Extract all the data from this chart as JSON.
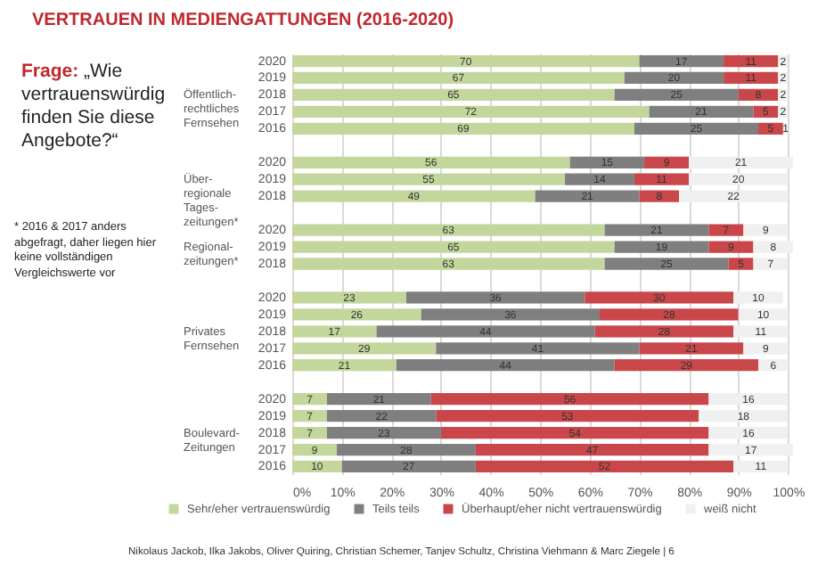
{
  "chart_data": {
    "type": "bar",
    "orientation": "horizontal",
    "stacked": true,
    "title": "VERTRAUEN IN MEDIENGATTUNGEN (2016-2020)",
    "categories": [
      "2020",
      "2019",
      "2018",
      "2017",
      "2016",
      null,
      "2020",
      "2019",
      "2018",
      null,
      "2020",
      "2019",
      "2018",
      null,
      "2020",
      "2019",
      "2018",
      "2017",
      "2016",
      null,
      "2020",
      "2019",
      "2018",
      "2017",
      "2016"
    ],
    "series": [
      {
        "name": "Sehr/eher vertrauenswürdig",
        "color": "#c3d69b",
        "values": [
          70,
          67,
          65,
          72,
          69,
          null,
          56,
          55,
          49,
          null,
          63,
          65,
          63,
          null,
          23,
          26,
          17,
          29,
          21,
          null,
          7,
          7,
          7,
          9,
          10
        ]
      },
      {
        "name": "Teils teils",
        "color": "#7f7f7f",
        "values": [
          17,
          20,
          25,
          21,
          25,
          null,
          15,
          14,
          21,
          null,
          21,
          19,
          25,
          null,
          36,
          36,
          44,
          41,
          44,
          null,
          21,
          22,
          23,
          28,
          27
        ]
      },
      {
        "name": "Überhaupt/eher nicht vertrauenswürdig",
        "color": "#c9474a",
        "values": [
          11,
          11,
          8,
          5,
          5,
          null,
          9,
          11,
          8,
          null,
          7,
          9,
          5,
          null,
          30,
          28,
          28,
          21,
          29,
          null,
          56,
          53,
          54,
          47,
          52
        ]
      },
      {
        "name": "weiß nicht",
        "color": "#f0f0f0",
        "values": [
          2,
          2,
          2,
          2,
          1,
          null,
          21,
          20,
          22,
          null,
          9,
          8,
          7,
          null,
          10,
          10,
          11,
          9,
          6,
          null,
          16,
          18,
          16,
          17,
          11
        ]
      }
    ],
    "xlim": [
      0,
      101
    ],
    "xticks": [
      {
        "value": 0,
        "label": "0%"
      },
      {
        "value": 10,
        "label": "10%"
      },
      {
        "value": 20,
        "label": "20%"
      },
      {
        "value": 30,
        "label": "30%"
      },
      {
        "value": 40,
        "label": "40%"
      },
      {
        "value": 50,
        "label": "50%"
      },
      {
        "value": 60,
        "label": "60%"
      },
      {
        "value": 70,
        "label": "70%"
      },
      {
        "value": 80,
        "label": "80%"
      },
      {
        "value": 90,
        "label": "90%"
      },
      {
        "value": 100,
        "label": "100%"
      }
    ],
    "grid": "x",
    "legend": "bottom",
    "data_labels": true,
    "annotations": [
      "Öffentlich-\nrechtliches\nFernsehen",
      "Über-\nregionale\nTages-\nzeitungen*",
      "Regional-\nzeitungen*",
      "Privates\nFernsehen",
      "Boulevard-\nZeitungen",
      "Frage:",
      "„Wie vertrauenswürdig finden Sie diese Angebote?“",
      "* 2016 & 2017 anders abgefragt, daher liegen hier keine vollständigen Vergleichswerte vor",
      "Nikolaus Jackob, Ilka Jakobs, Oliver Quiring, Christian Schemer, Tanjev Schultz, Christina Viehmann & Marc Ziegele | 6"
    ]
  }
}
